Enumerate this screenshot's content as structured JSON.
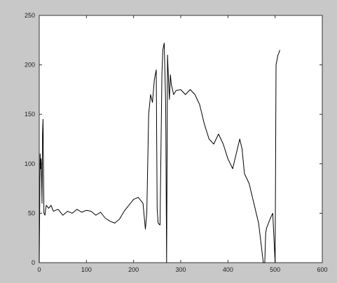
{
  "chart_data": {
    "type": "line",
    "title": "",
    "xlabel": "",
    "ylabel": "",
    "xlim": [
      0,
      600
    ],
    "ylim": [
      0,
      250
    ],
    "grid": false,
    "xticks": [
      0,
      100,
      200,
      300,
      400,
      500,
      600
    ],
    "yticks": [
      0,
      50,
      100,
      150,
      200,
      250
    ],
    "xtick_labels": [
      "0",
      "100",
      "200",
      "300",
      "400",
      "500",
      "600"
    ],
    "ytick_labels": [
      "0",
      "50",
      "100",
      "150",
      "200",
      "250"
    ],
    "series": [
      {
        "color": "#000000",
        "x": [
          0,
          2,
          3,
          4,
          5,
          6,
          7,
          8,
          10,
          12,
          14,
          15,
          20,
          25,
          30,
          40,
          50,
          60,
          70,
          80,
          90,
          100,
          110,
          120,
          130,
          140,
          150,
          160,
          170,
          180,
          190,
          200,
          210,
          220,
          225,
          228,
          232,
          236,
          240,
          244,
          248,
          250,
          252,
          256,
          260,
          262,
          265,
          268,
          270,
          272,
          274,
          276,
          278,
          280,
          285,
          290,
          300,
          310,
          320,
          330,
          340,
          350,
          360,
          370,
          380,
          390,
          400,
          410,
          420,
          425,
          430,
          435,
          440,
          445,
          450,
          455,
          460,
          465,
          470,
          475,
          478,
          480,
          482,
          490,
          495,
          500,
          502,
          504,
          506,
          508,
          510
        ],
        "y": [
          0,
          110,
          95,
          105,
          85,
          60,
          130,
          145,
          50,
          48,
          55,
          58,
          55,
          58,
          52,
          54,
          48,
          52,
          50,
          54,
          51,
          53,
          52,
          48,
          51,
          45,
          42,
          40,
          44,
          52,
          58,
          64,
          66,
          60,
          34,
          50,
          150,
          170,
          162,
          185,
          195,
          55,
          40,
          38,
          190,
          215,
          222,
          160,
          0,
          210,
          185,
          165,
          190,
          180,
          170,
          174,
          175,
          170,
          175,
          170,
          160,
          140,
          125,
          120,
          130,
          120,
          105,
          95,
          115,
          125,
          115,
          90,
          85,
          80,
          70,
          60,
          50,
          40,
          20,
          0,
          0,
          30,
          35,
          45,
          50,
          0,
          200,
          205,
          210,
          212,
          215
        ]
      }
    ]
  }
}
